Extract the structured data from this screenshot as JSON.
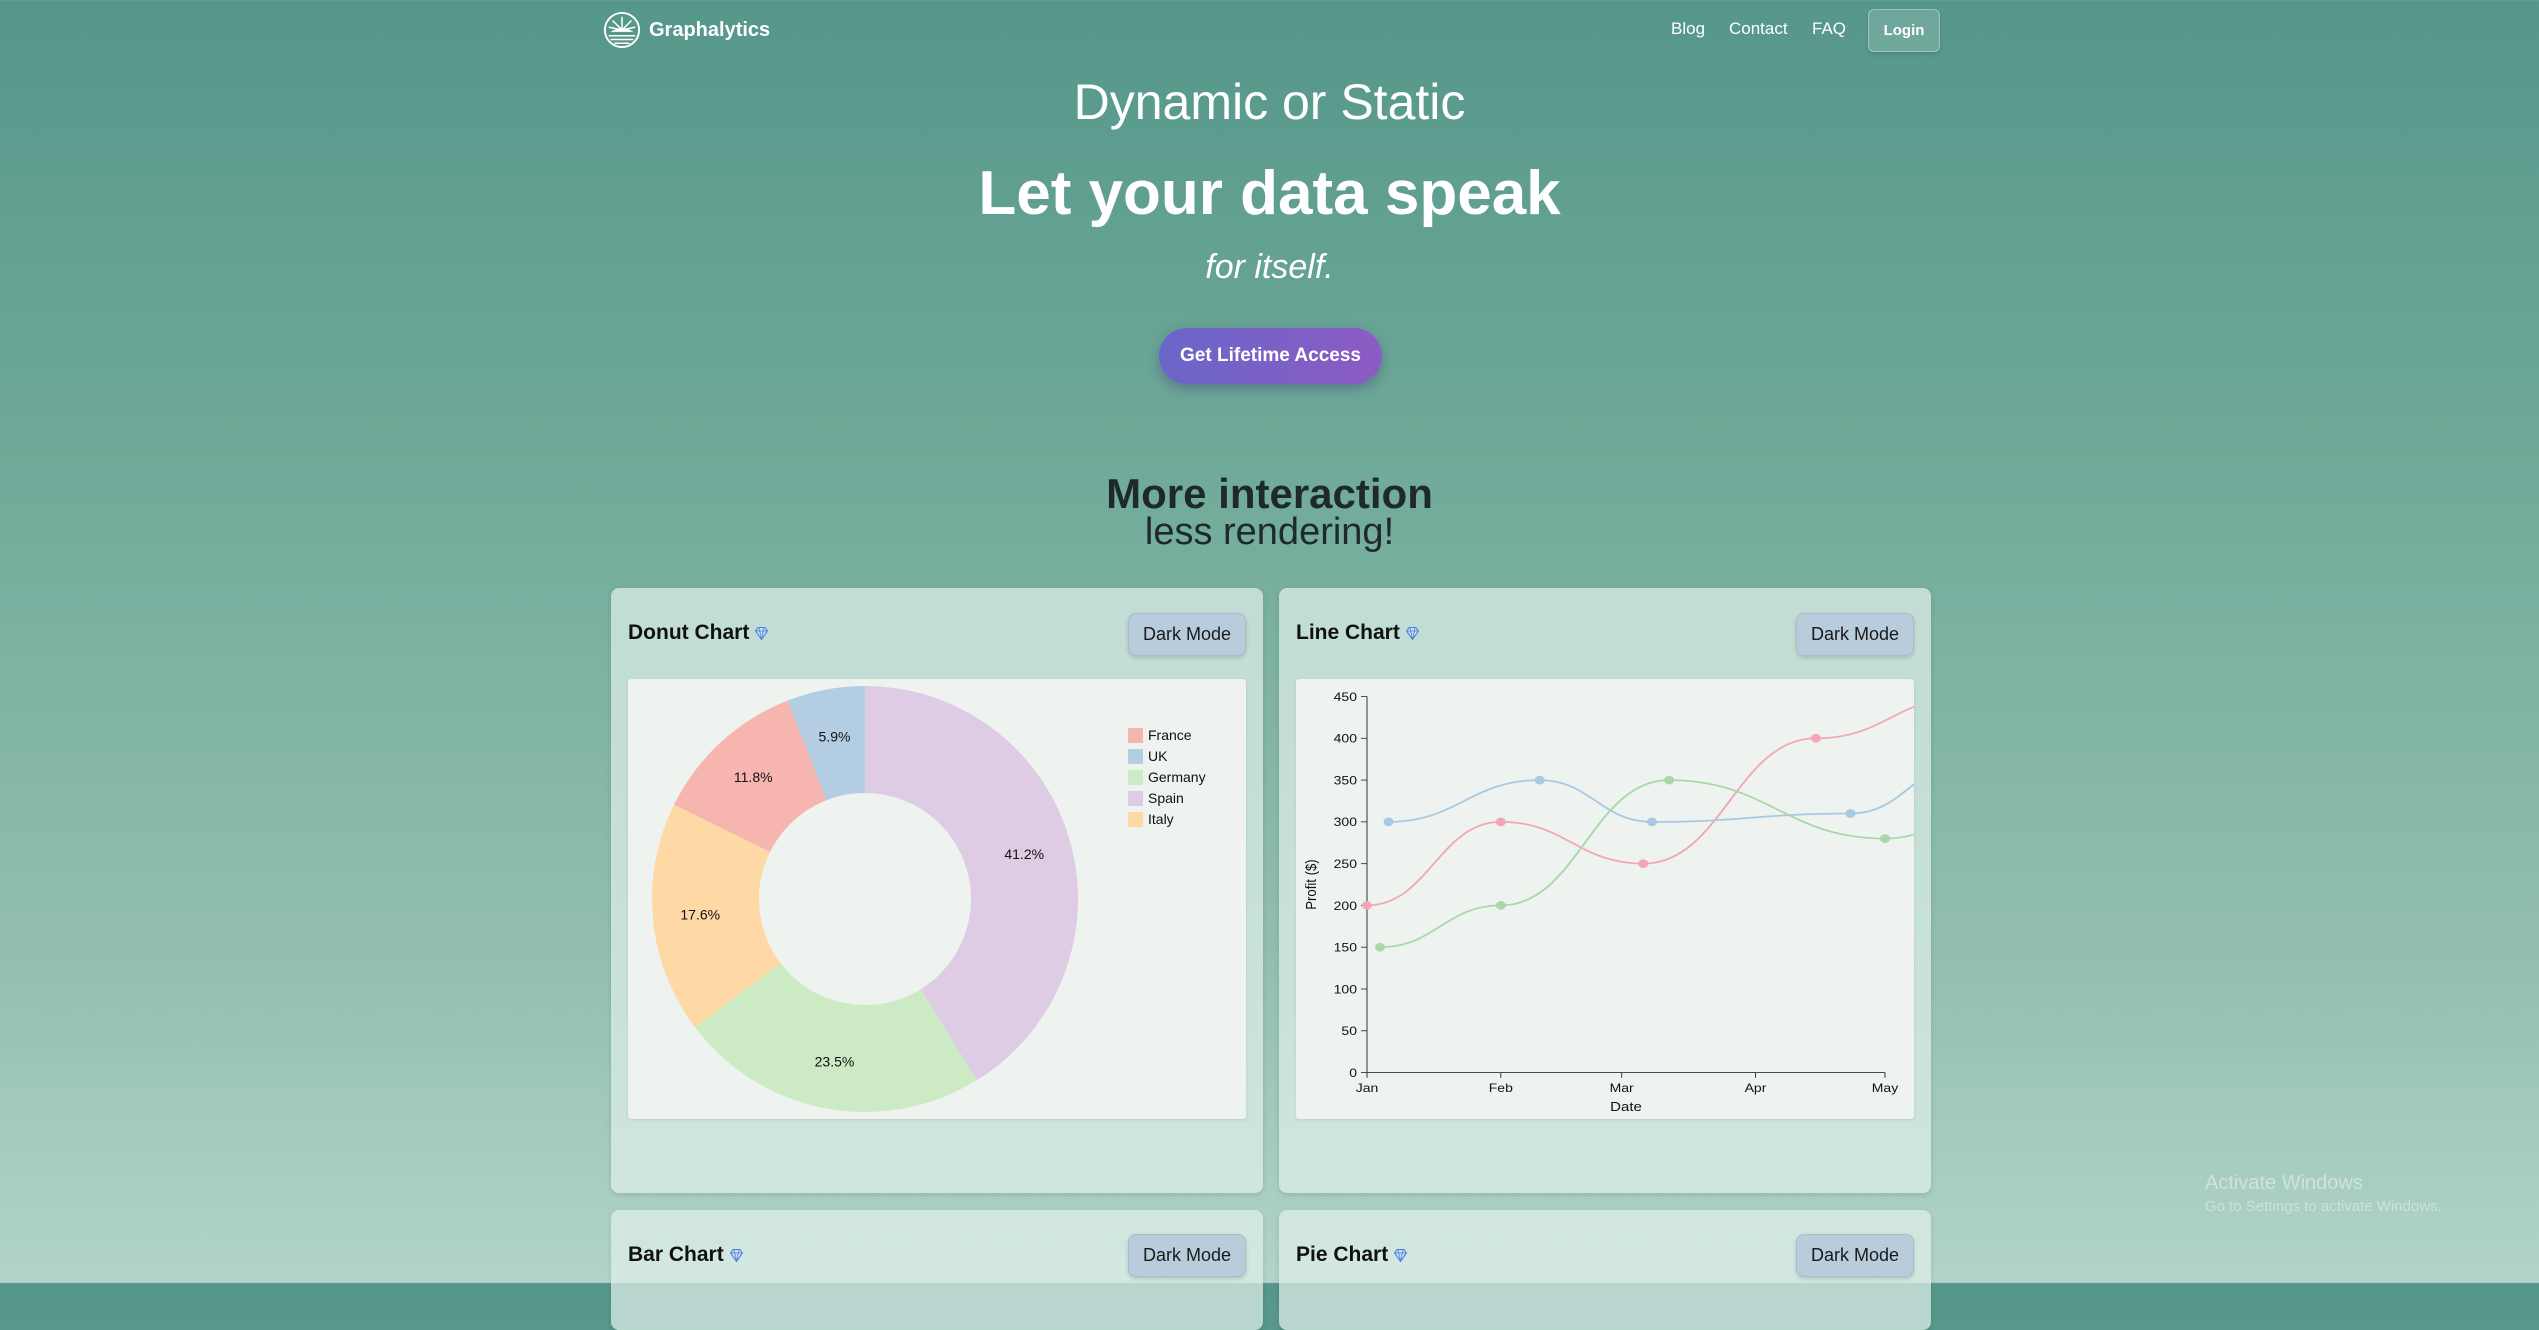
{
  "nav": {
    "brand": "Graphalytics",
    "links": [
      "Blog",
      "Contact",
      "FAQ"
    ],
    "login": "Login"
  },
  "hero": {
    "pretitle": "Dynamic or Static",
    "title": "Let your data speak",
    "subtitle": "for itself.",
    "cta": "Get Lifetime Access"
  },
  "section": {
    "line1": "More interaction",
    "line2": "less rendering!"
  },
  "cards": [
    {
      "title": "Donut Chart",
      "button": "Dark Mode"
    },
    {
      "title": "Line Chart",
      "button": "Dark Mode"
    },
    {
      "title": "Bar Chart",
      "button": "Dark Mode"
    },
    {
      "title": "Pie Chart",
      "button": "Dark Mode"
    }
  ],
  "chart_data": [
    {
      "type": "pie",
      "donut": true,
      "categories": [
        "France",
        "UK",
        "Germany",
        "Spain",
        "Italy"
      ],
      "values": [
        11.8,
        5.9,
        23.5,
        41.2,
        17.6
      ],
      "value_labels": [
        "11.8%",
        "5.9%",
        "23.5%",
        "41.2%",
        "17.6%"
      ],
      "order_clockwise_from_top": [
        "Spain",
        "Germany",
        "Italy",
        "France",
        "UK"
      ],
      "colors": {
        "France": "#f7b5b0",
        "UK": "#b3cde3",
        "Germany": "#ccebc5",
        "Spain": "#decbe4",
        "Italy": "#fed9a6"
      },
      "legend": "right"
    },
    {
      "type": "line",
      "xlabel": "Date",
      "ylabel": "Profit ($)",
      "ylim": [
        0,
        450
      ],
      "yticks": [
        "0",
        "50",
        "100",
        "150",
        "200",
        "250",
        "300",
        "350",
        "400",
        "450"
      ],
      "xticks": [
        "Jan",
        "Feb",
        "Mar",
        "Apr",
        "May"
      ],
      "series": [
        {
          "color": "#f4a6b8",
          "x": [
            "2023-01-01",
            "2023-02-01",
            "2023-03-06",
            "2023-04-15",
            "2023-05-20"
          ],
          "y": [
            200,
            300,
            250,
            400,
            450
          ]
        },
        {
          "color": "#a9c8e3",
          "x": [
            "2023-01-06",
            "2023-02-10",
            "2023-03-08",
            "2023-04-23",
            "2023-05-20"
          ],
          "y": [
            300,
            350,
            300,
            310,
            370
          ]
        },
        {
          "color": "#a8d8a8",
          "x": [
            "2023-01-04",
            "2023-02-01",
            "2023-03-12",
            "2023-05-01",
            "2023-05-20"
          ],
          "y": [
            150,
            200,
            350,
            280,
            300
          ]
        }
      ],
      "grid": false
    }
  ],
  "watermark": {
    "line1": "Activate Windows",
    "line2": "Go to Settings to activate Windows."
  }
}
